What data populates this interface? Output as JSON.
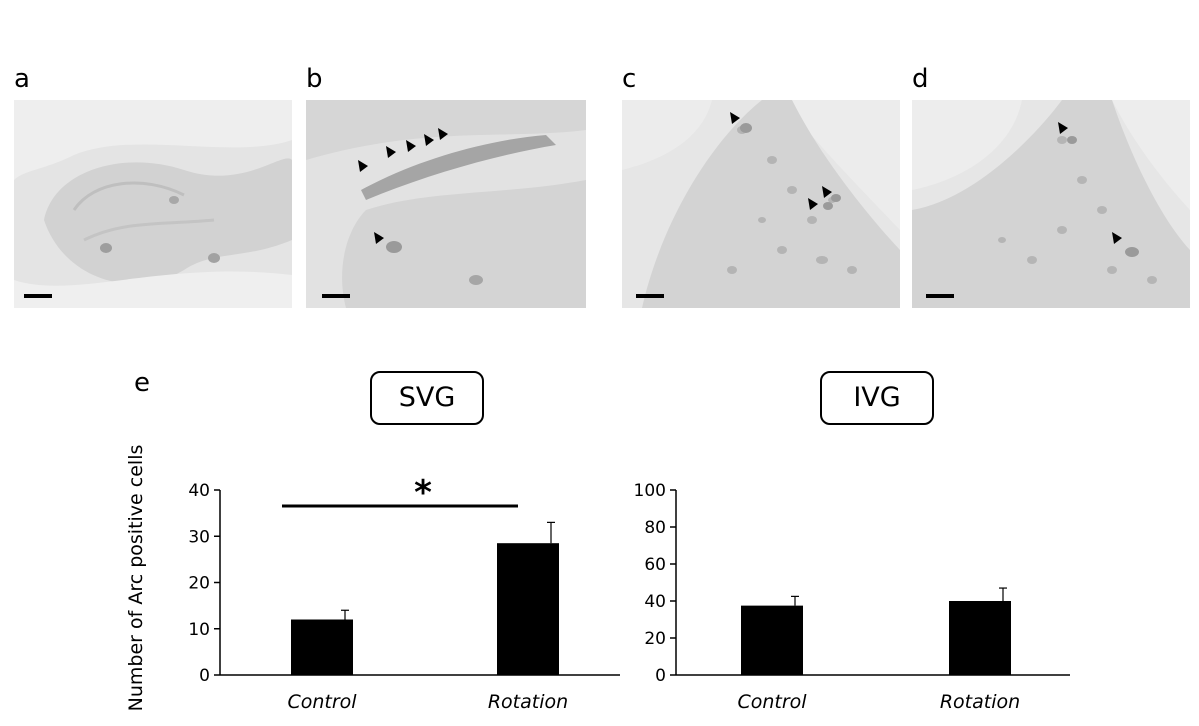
{
  "panels": {
    "a": "a",
    "b": "b",
    "c": "c",
    "d": "d",
    "e": "e"
  },
  "chart_data": [
    {
      "type": "bar",
      "title": "SVG",
      "ylabel": "Number of Arc positive cells",
      "categories": [
        "Control",
        "Rotation"
      ],
      "values": [
        12,
        28.5
      ],
      "errors": [
        2,
        4.5
      ],
      "ylim": [
        0,
        40
      ],
      "yticks": [
        "0",
        "10",
        "20",
        "30",
        "40"
      ],
      "ytick_values": [
        0,
        10,
        20,
        30,
        40
      ],
      "bar_color": "#000000",
      "significance": "*"
    },
    {
      "type": "bar",
      "title": "IVG",
      "categories": [
        "Control",
        "Rotation"
      ],
      "values": [
        37.5,
        40
      ],
      "errors": [
        5,
        7
      ],
      "ylim": [
        0,
        100
      ],
      "yticks": [
        "0",
        "20",
        "40",
        "60",
        "80",
        "100"
      ],
      "ytick_values": [
        0,
        20,
        40,
        60,
        80,
        100
      ],
      "bar_color": "#000000"
    }
  ]
}
